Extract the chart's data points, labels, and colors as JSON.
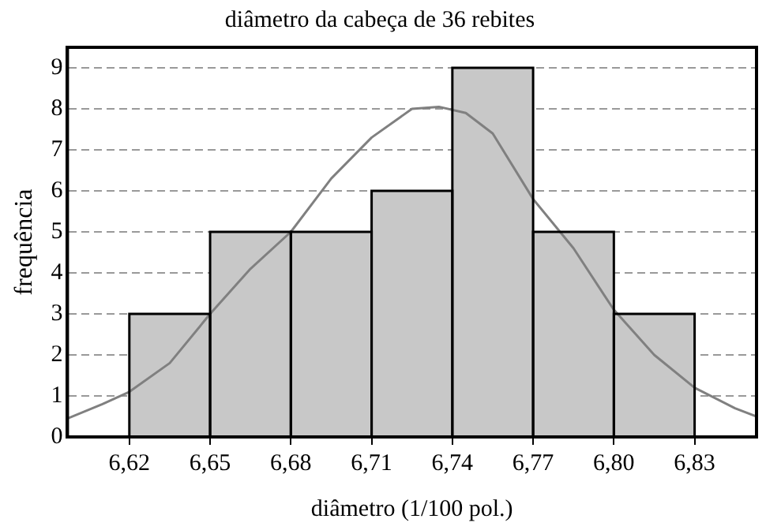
{
  "chart_data": {
    "type": "histogram",
    "title": "diâmetro da cabeça de 36 rebites",
    "xlabel": "diâmetro (1/100 pol.)",
    "ylabel": "frequência",
    "bins": [
      6.62,
      6.65,
      6.68,
      6.71,
      6.74,
      6.77,
      6.8,
      6.83
    ],
    "values": [
      3,
      5,
      5,
      6,
      9,
      5,
      3
    ],
    "color": "#c8c8c8",
    "series": [
      {
        "type": "line",
        "color": "#808080",
        "x": [
          6.597,
          6.61,
          6.62,
          6.635,
          6.65,
          6.665,
          6.68,
          6.695,
          6.71,
          6.725,
          6.735,
          6.745,
          6.755,
          6.77,
          6.785,
          6.8,
          6.815,
          6.83,
          6.845,
          6.853
        ],
        "values": [
          0.45,
          0.8,
          1.1,
          1.8,
          3.0,
          4.1,
          5.0,
          6.3,
          7.3,
          8.0,
          8.05,
          7.9,
          7.4,
          5.8,
          4.6,
          3.1,
          2.0,
          1.2,
          0.7,
          0.5
        ]
      }
    ],
    "xlim": [
      6.597,
      6.853
    ],
    "xticks": [
      {
        "value": 6.62,
        "label": "6,62"
      },
      {
        "value": 6.65,
        "label": "6,65"
      },
      {
        "value": 6.68,
        "label": "6,68"
      },
      {
        "value": 6.71,
        "label": "6,71"
      },
      {
        "value": 6.74,
        "label": "6,74"
      },
      {
        "value": 6.77,
        "label": "6,77"
      },
      {
        "value": 6.8,
        "label": "6,80"
      },
      {
        "value": 6.83,
        "label": "6,83"
      }
    ],
    "ylim": [
      0,
      9.5
    ],
    "yticks": [
      0,
      1,
      2,
      3,
      4,
      5,
      6,
      7,
      8,
      9
    ],
    "grid": "y",
    "legend": false,
    "marker": "none",
    "line_style": "solid"
  }
}
